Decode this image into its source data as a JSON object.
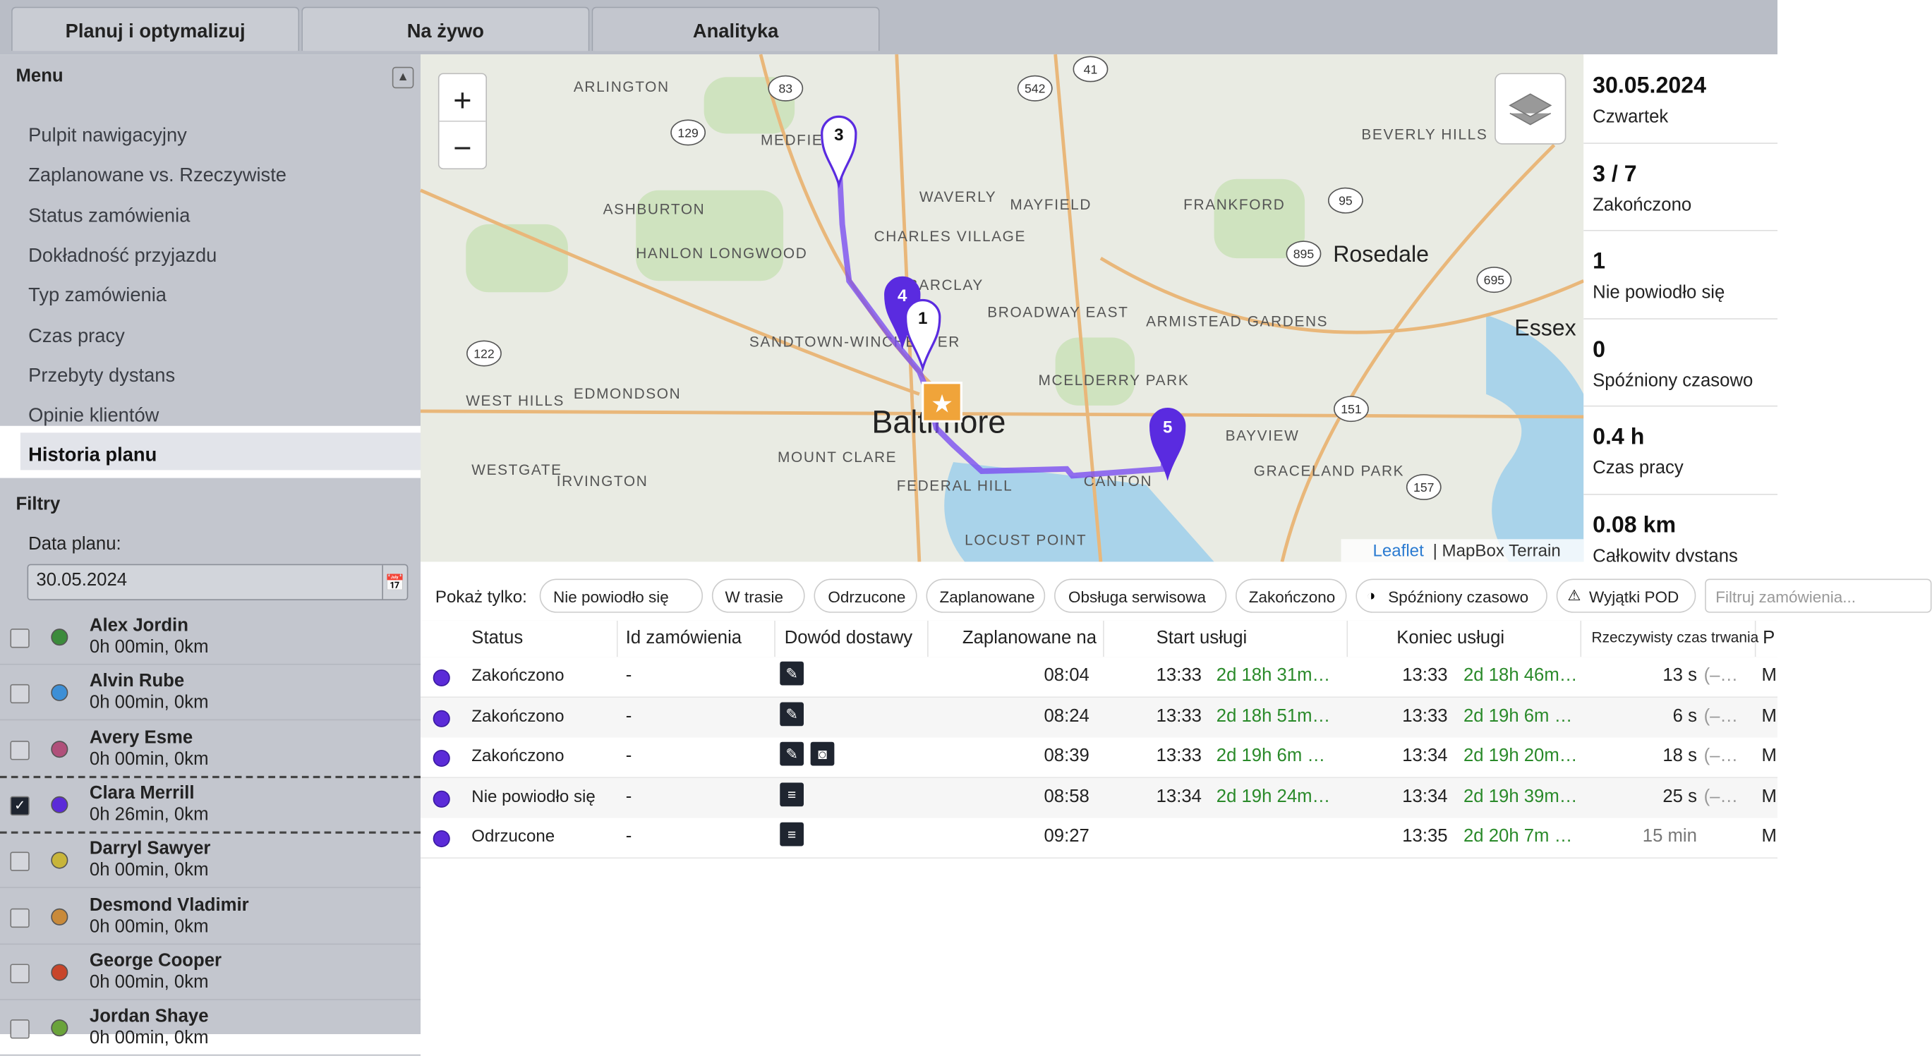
{
  "tabs": [
    "Planuj i optymalizuj",
    "Na żywo",
    "Analityka"
  ],
  "menu": {
    "title": "Menu",
    "items": [
      "Pulpit nawigacyjny",
      "Zaplanowane vs. Rzeczywiste",
      "Status zamówienia",
      "Dokładność przyjazdu",
      "Typ zamówienia",
      "Czas pracy",
      "Przebyty dystans",
      "Opinie klientów",
      "Historia planu"
    ],
    "active": 8
  },
  "filters": {
    "title": "Filtry",
    "date_label": "Data planu:",
    "date": "30.05.2024"
  },
  "drivers": [
    {
      "name": "Alex Jordin",
      "stats": "0h 00min, 0km",
      "color": "#3b8b3b",
      "checked": false
    },
    {
      "name": "Alvin Rube",
      "stats": "0h 00min, 0km",
      "color": "#3d8fd6",
      "checked": false
    },
    {
      "name": "Avery Esme",
      "stats": "0h 00min, 0km",
      "color": "#b0507a",
      "checked": false
    },
    {
      "name": "Clara Merrill",
      "stats": "0h 26min, 0km",
      "color": "#5b2bd8",
      "checked": true
    },
    {
      "name": "Darryl Sawyer",
      "stats": "0h 00min, 0km",
      "color": "#c8b53a",
      "checked": false
    },
    {
      "name": "Desmond Vladimir",
      "stats": "0h 00min, 0km",
      "color": "#c98a3a",
      "checked": false
    },
    {
      "name": "George Cooper",
      "stats": "0h 00min, 0km",
      "color": "#c8452a",
      "checked": false
    },
    {
      "name": "Jordan Shaye",
      "stats": "0h 00min, 0km",
      "color": "#6aa33a",
      "checked": false
    }
  ],
  "map": {
    "labels": [
      "ARLINGTON",
      "MEDFIELD",
      "WAVERLY",
      "MAYFIELD",
      "FRANKFORD",
      "BEVERLY HILLS",
      "ASHBURTON",
      "HANLON LONGWOOD",
      "CHARLES VILLAGE",
      "BARCLAY",
      "BROADWAY EAST",
      "ARMISTEAD GARDENS",
      "Rosedale",
      "Essex",
      "SANDTOWN-WINCHESTER",
      "WEST HILLS",
      "EDMONDSON",
      "MCELDERRY PARK",
      "Baltimore",
      "BAYVIEW",
      "WESTGATE",
      "IRVINGTON",
      "MOUNT CLARE",
      "FEDERAL HILL",
      "CANTON",
      "GRACELAND PARK",
      "LOCUST POINT"
    ],
    "shields": [
      "83",
      "542",
      "41",
      "129",
      "95",
      "895",
      "695",
      "122",
      "151",
      "157"
    ],
    "markers": [
      "3",
      "4",
      "1",
      "5"
    ],
    "zoom_in": "+",
    "zoom_out": "−",
    "attribution": [
      "Leaflet",
      "| MapBox Terrain"
    ]
  },
  "stats": [
    {
      "value": "30.05.2024",
      "label": "Czwartek"
    },
    {
      "value": "3 / 7",
      "label": "Zakończono"
    },
    {
      "value": "1",
      "label": "Nie powiodło się"
    },
    {
      "value": "0",
      "label": "Spóźniony czasowo"
    },
    {
      "value": "0.4 h",
      "label": "Czas pracy"
    },
    {
      "value": "0.08 km",
      "label": "Całkowity dystans"
    }
  ],
  "filter_bar": {
    "label": "Pokaż tylko:",
    "chips": [
      "Nie powiodło się",
      "W trasie",
      "Odrzucone",
      "Zaplanowane",
      "Obsługa serwisowa",
      "Zakończono",
      "Spóźniony czasowo",
      "Wyjątki POD"
    ],
    "search": "Filtruj zamówienia..."
  },
  "table": {
    "headers": [
      "Status",
      "Id zamówienia",
      "Dowód dostawy",
      "Zaplanowane na",
      "Start usługi",
      "Koniec usługi",
      "Rzeczywisty czas trwania",
      "P"
    ],
    "rows": [
      [
        "Zakończono",
        "-",
        "08:04",
        "13:33",
        "2d 18h 31m…",
        "13:33",
        "2d 18h 46m…",
        "13 s",
        "(–…",
        "M"
      ],
      [
        "Zakończono",
        "-",
        "08:24",
        "13:33",
        "2d 18h 51m…",
        "13:33",
        "2d 19h 6m …",
        "6 s",
        "(–…",
        "M"
      ],
      [
        "Zakończono",
        "-",
        "08:39",
        "13:33",
        "2d 19h 6m …",
        "13:34",
        "2d 19h 20m…",
        "18 s",
        "(–…",
        "M"
      ],
      [
        "Nie powiodło się",
        "-",
        "08:58",
        "13:34",
        "2d 19h 24m…",
        "13:34",
        "2d 19h 39m…",
        "25 s",
        "(–…",
        "M"
      ],
      [
        "Odrzucone",
        "-",
        "09:27",
        null,
        null,
        "13:35",
        "2d 20h 7m …",
        "15 min",
        null,
        "M"
      ]
    ]
  }
}
